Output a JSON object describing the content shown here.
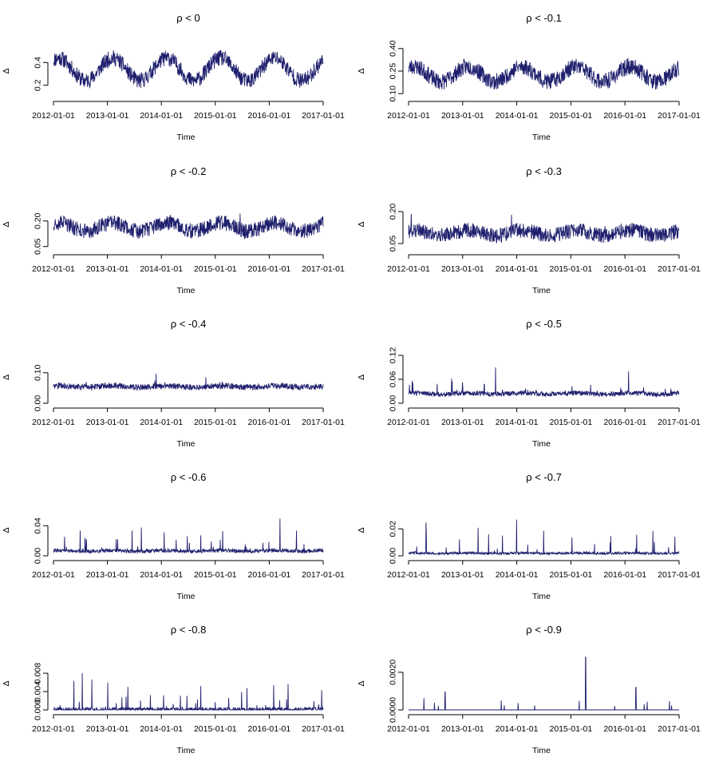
{
  "chart_data": [
    {
      "type": "line",
      "title": "ρ  < 0",
      "xlabel": "Time",
      "ylabel": "Δ",
      "xticks": [
        "2012-01-01",
        "2013-01-01",
        "2014-01-01",
        "2015-01-01",
        "2016-01-01",
        "2017-01-01"
      ],
      "yticks": [
        "0.2",
        "0.4"
      ],
      "ytick_values": [
        0.2,
        0.4
      ],
      "ylim": [
        0.1,
        0.55
      ],
      "shape": {
        "kind": "seasonal",
        "base": 0.34,
        "amp": 0.1,
        "noise": 0.07,
        "spike_p": 0.0,
        "spike_max": 0.0,
        "phase": 0.0,
        "seed": 11
      },
      "color": "#1f1f6e"
    },
    {
      "type": "line",
      "title": "ρ  < -0.1",
      "xlabel": "Time",
      "ylabel": "Δ",
      "xticks": [
        "2012-01-01",
        "2013-01-01",
        "2014-01-01",
        "2015-01-01",
        "2016-01-01",
        "2017-01-01"
      ],
      "yticks": [
        "0.10",
        "0.25",
        "0.40"
      ],
      "ytick_values": [
        0.1,
        0.25,
        0.4
      ],
      "ylim": [
        0.08,
        0.42
      ],
      "shape": {
        "kind": "seasonal",
        "base": 0.23,
        "amp": 0.05,
        "noise": 0.055,
        "spike_p": 0.0,
        "spike_max": 0.0,
        "phase": 0.0,
        "seed": 23
      },
      "color": "#1f1f6e"
    },
    {
      "type": "line",
      "title": "ρ  < -0.2",
      "xlabel": "Time",
      "ylabel": "Δ",
      "xticks": [
        "2012-01-01",
        "2013-01-01",
        "2014-01-01",
        "2015-01-01",
        "2016-01-01",
        "2017-01-01"
      ],
      "yticks": [
        "0.05",
        "0.20"
      ],
      "ytick_values": [
        0.05,
        0.2
      ],
      "ylim": [
        0.03,
        0.33
      ],
      "shape": {
        "kind": "seasonal",
        "base": 0.165,
        "amp": 0.025,
        "noise": 0.045,
        "spike_p": 0.004,
        "spike_max": 0.08,
        "phase": 0.0,
        "seed": 37
      },
      "color": "#1f1f6e"
    },
    {
      "type": "line",
      "title": "ρ  < -0.3",
      "xlabel": "Time",
      "ylabel": "Δ",
      "xticks": [
        "2012-01-01",
        "2013-01-01",
        "2014-01-01",
        "2015-01-01",
        "2016-01-01",
        "2017-01-01"
      ],
      "yticks": [
        "0.05",
        "0.20"
      ],
      "ytick_values": [
        0.05,
        0.2
      ],
      "ylim": [
        0.02,
        0.26
      ],
      "shape": {
        "kind": "seasonal",
        "base": 0.1,
        "amp": 0.012,
        "noise": 0.035,
        "spike_p": 0.01,
        "spike_max": 0.08,
        "phase": 0.0,
        "seed": 41
      },
      "color": "#1f1f6e"
    },
    {
      "type": "line",
      "title": "ρ  < -0.4",
      "xlabel": "Time",
      "ylabel": "Δ",
      "xticks": [
        "2012-01-01",
        "2013-01-01",
        "2014-01-01",
        "2015-01-01",
        "2016-01-01",
        "2017-01-01"
      ],
      "yticks": [
        "0.00",
        "0.10"
      ],
      "ytick_values": [
        0.0,
        0.1
      ],
      "ylim": [
        0.0,
        0.17
      ],
      "shape": {
        "kind": "spiky",
        "base": 0.045,
        "amp": 0.005,
        "noise": 0.02,
        "spike_p": 0.02,
        "spike_max": 0.09,
        "phase": 0.0,
        "seed": 53
      },
      "color": "#1f1f6e"
    },
    {
      "type": "line",
      "title": "ρ  < -0.5",
      "xlabel": "Time",
      "ylabel": "Δ",
      "xticks": [
        "2012-01-01",
        "2013-01-01",
        "2014-01-01",
        "2015-01-01",
        "2016-01-01",
        "2017-01-01"
      ],
      "yticks": [
        "0.00",
        "0.06",
        "0.12"
      ],
      "ytick_values": [
        0.0,
        0.06,
        0.12
      ],
      "ylim": [
        0.0,
        0.13
      ],
      "shape": {
        "kind": "spiky",
        "base": 0.018,
        "amp": 0.003,
        "noise": 0.012,
        "spike_p": 0.025,
        "spike_max": 0.08,
        "phase": 0.0,
        "seed": 67
      },
      "color": "#1f1f6e"
    },
    {
      "type": "line",
      "title": "ρ  < -0.6",
      "xlabel": "Time",
      "ylabel": "Δ",
      "xticks": [
        "2012-01-01",
        "2013-01-01",
        "2014-01-01",
        "2015-01-01",
        "2016-01-01",
        "2017-01-01"
      ],
      "yticks": [
        "0.00",
        "0.04"
      ],
      "ytick_values": [
        0.0,
        0.04
      ],
      "ylim": [
        0.0,
        0.068
      ],
      "shape": {
        "kind": "spiky",
        "base": 0.004,
        "amp": 0.001,
        "noise": 0.005,
        "spike_p": 0.035,
        "spike_max": 0.05,
        "phase": 0.0,
        "seed": 71
      },
      "color": "#1f1f6e"
    },
    {
      "type": "line",
      "title": "ρ  < -0.7",
      "xlabel": "Time",
      "ylabel": "Δ",
      "xticks": [
        "2012-01-01",
        "2013-01-01",
        "2014-01-01",
        "2015-01-01",
        "2016-01-01",
        "2017-01-01"
      ],
      "yticks": [
        "0.00",
        "0.02"
      ],
      "ytick_values": [
        0.0,
        0.02
      ],
      "ylim": [
        0.0,
        0.038
      ],
      "shape": {
        "kind": "spiky",
        "base": 0.001,
        "amp": 0.0003,
        "noise": 0.0018,
        "spike_p": 0.035,
        "spike_max": 0.028,
        "phase": 0.0,
        "seed": 83
      },
      "color": "#1f1f6e"
    },
    {
      "type": "line",
      "title": "ρ  < -0.8",
      "xlabel": "Time",
      "ylabel": "Δ",
      "xticks": [
        "2012-01-01",
        "2013-01-01",
        "2014-01-01",
        "2015-01-01",
        "2016-01-01",
        "2017-01-01"
      ],
      "yticks": [
        "0.000",
        "0.004",
        "0.008"
      ],
      "ytick_values": [
        0.0,
        0.004,
        0.008
      ],
      "ylim": [
        0.0,
        0.0115
      ],
      "shape": {
        "kind": "sparse",
        "base": 0.0,
        "amp": 0.0,
        "noise": 0.0006,
        "spike_p": 0.05,
        "spike_max": 0.009,
        "phase": 0.0,
        "seed": 97
      },
      "color": "#1f1f6e"
    },
    {
      "type": "line",
      "title": "ρ  < -0.9",
      "xlabel": "Time",
      "ylabel": "Δ",
      "xticks": [
        "2012-01-01",
        "2013-01-01",
        "2014-01-01",
        "2015-01-01",
        "2016-01-01",
        "2017-01-01"
      ],
      "yticks": [
        "0.0000",
        "0.0020"
      ],
      "ytick_values": [
        0.0,
        0.002
      ],
      "ylim": [
        0.0,
        0.0028
      ],
      "shape": {
        "kind": "rare",
        "base": 0.0,
        "amp": 0.0,
        "noise": 0.0,
        "spike_p": 0.012,
        "spike_max": 0.0009,
        "phase": 0.0,
        "seed": 101,
        "big_spikes": [
          [
            0.135,
            0.00095
          ],
          [
            0.655,
            0.0028
          ],
          [
            0.84,
            0.0012
          ]
        ]
      },
      "color": "#1f1f6e"
    }
  ]
}
